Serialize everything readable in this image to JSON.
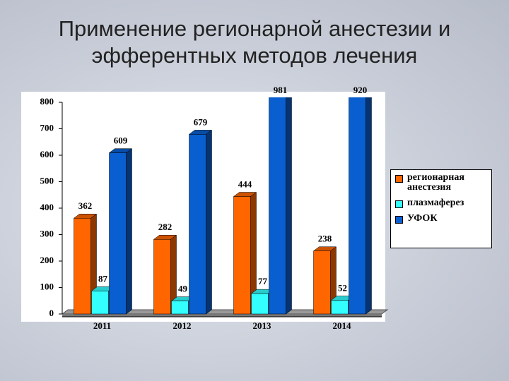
{
  "chart_data": {
    "type": "bar3d",
    "title": "Применение регионарной анестезии и эфферентных методов лечения",
    "categories": [
      "2011",
      "2012",
      "2013",
      "2014"
    ],
    "series": [
      {
        "name": "регионарная анестезия",
        "color": "#ff6600",
        "values": [
          362,
          282,
          444,
          238
        ]
      },
      {
        "name": "плазмаферез",
        "color": "#33ffff",
        "values": [
          87,
          49,
          77,
          52
        ]
      },
      {
        "name": "УФОК",
        "color": "#0a5fd0",
        "values": [
          609,
          679,
          981,
          920
        ]
      }
    ],
    "ylim": [
      0,
      800
    ],
    "yticks": [
      0,
      100,
      200,
      300,
      400,
      500,
      600,
      700,
      800
    ],
    "legend": "right"
  }
}
